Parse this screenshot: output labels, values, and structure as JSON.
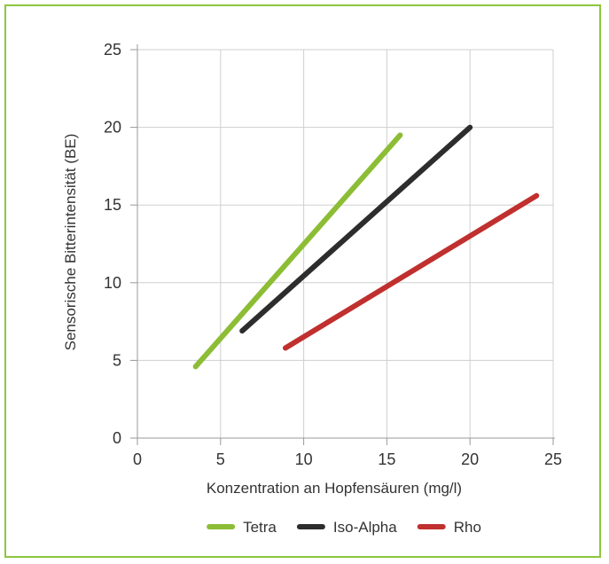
{
  "colors": {
    "border": "#8cc63e",
    "grid": "#cfcfcf",
    "axis": "#999999"
  },
  "chart_data": {
    "type": "line",
    "title": "",
    "xlabel": "Konzentration an Hopfensäuren (mg/l)",
    "ylabel": "Sensorische Bitterintensität (BE)",
    "xlim": [
      0,
      25
    ],
    "ylim": [
      0,
      25
    ],
    "xticks": [
      0,
      5,
      10,
      15,
      20,
      25
    ],
    "yticks": [
      0,
      5,
      10,
      15,
      20,
      25
    ],
    "grid": true,
    "legend_position": "bottom",
    "series": [
      {
        "name": "Tetra",
        "color": "#8cbd35",
        "x": [
          3.5,
          15.8
        ],
        "y": [
          4.6,
          19.5
        ]
      },
      {
        "name": "Iso-Alpha",
        "color": "#2d2d2d",
        "x": [
          6.3,
          20.0
        ],
        "y": [
          6.9,
          20.0
        ]
      },
      {
        "name": "Rho",
        "color": "#c0302e",
        "x": [
          8.9,
          24.0
        ],
        "y": [
          5.8,
          15.6
        ]
      }
    ]
  }
}
